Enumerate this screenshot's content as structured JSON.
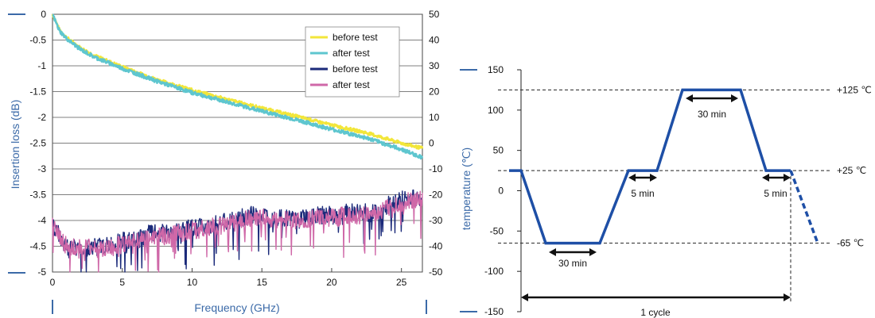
{
  "chart_data": [
    {
      "type": "line",
      "xlabel": "Frequency (GHz)",
      "ylabel": "Insertion loss (dB)",
      "xlim": [
        0,
        26.5
      ],
      "ylim": [
        -5,
        0
      ],
      "y2lim": [
        -50,
        50
      ],
      "x_ticks": [
        "0",
        "5",
        "10",
        "15",
        "20",
        "25"
      ],
      "y_ticks": [
        "0",
        "-0.5",
        "-1",
        "-1.5",
        "-2",
        "-2.5",
        "-3",
        "-3.5",
        "-4",
        "-4.5",
        "-5"
      ],
      "y2_ticks": [
        "50",
        "40",
        "30",
        "20",
        "10",
        "0",
        "-10",
        "-20",
        "-30",
        "-40",
        "-50"
      ],
      "grid": true,
      "legend_position": "top-right",
      "series": [
        {
          "name": "before test",
          "color": "#f2e63a",
          "axis": "left",
          "x": [
            0,
            0.5,
            1,
            2,
            3,
            5,
            7.5,
            10,
            12.5,
            15,
            17.5,
            20,
            22.5,
            25,
            26.5
          ],
          "values": [
            0,
            -0.3,
            -0.45,
            -0.65,
            -0.8,
            -1.02,
            -1.27,
            -1.47,
            -1.65,
            -1.82,
            -1.98,
            -2.15,
            -2.3,
            -2.5,
            -2.6
          ]
        },
        {
          "name": "after test",
          "color": "#5ec6cf",
          "axis": "left",
          "x": [
            0,
            0.5,
            1,
            2,
            3,
            5,
            7.5,
            10,
            12.5,
            15,
            17.5,
            20,
            22.5,
            25,
            26.5
          ],
          "values": [
            0,
            -0.32,
            -0.47,
            -0.68,
            -0.83,
            -1.05,
            -1.3,
            -1.52,
            -1.7,
            -1.88,
            -2.05,
            -2.23,
            -2.4,
            -2.62,
            -2.78
          ]
        },
        {
          "name": "before test",
          "color": "#1b2a7a",
          "axis": "right",
          "x": [
            0,
            0.5,
            1,
            2,
            3,
            4,
            5,
            6,
            7,
            8,
            9,
            10,
            11,
            12,
            13,
            14,
            15,
            16,
            17,
            18,
            19,
            20,
            21,
            22,
            23,
            24,
            25,
            26.5
          ],
          "values": [
            -32,
            -36,
            -40,
            -41,
            -40,
            -40,
            -38,
            -38,
            -35,
            -35,
            -34,
            -33,
            -32,
            -31,
            -30,
            -28,
            -28,
            -29,
            -29,
            -29,
            -28,
            -28,
            -27,
            -27,
            -27,
            -24,
            -22,
            -21
          ]
        },
        {
          "name": "after test",
          "color": "#cf68a8",
          "axis": "right",
          "x": [
            0,
            0.5,
            1,
            2,
            3,
            4,
            5,
            6,
            7,
            8,
            9,
            10,
            11,
            12,
            13,
            14,
            15,
            16,
            17,
            18,
            19,
            20,
            21,
            22,
            23,
            24,
            25,
            26.5
          ],
          "values": [
            -32,
            -36,
            -40,
            -41,
            -40,
            -41,
            -39,
            -38,
            -36,
            -36,
            -35,
            -34,
            -33,
            -32,
            -31,
            -29,
            -29,
            -30,
            -30,
            -30,
            -29,
            -29,
            -28,
            -28,
            -28,
            -25,
            -23,
            -22
          ]
        }
      ]
    },
    {
      "type": "line",
      "xlabel": "",
      "ylabel": "temperature (℃)",
      "ylim": [
        -150,
        150
      ],
      "y_ticks": [
        "150",
        "100",
        "50",
        "0",
        "-50",
        "-100",
        "-150"
      ],
      "grid": false,
      "series": [
        {
          "color": "#1e4fa6",
          "x": [
            0,
            3,
            5,
            9,
            12,
            13.5,
            15.5,
            19,
            21,
            23,
            25
          ],
          "values": [
            25,
            25,
            -65,
            -65,
            25,
            25,
            125,
            125,
            25,
            25,
            25
          ]
        },
        {
          "color": "#1e4fa6",
          "style": "dashed",
          "x": [
            23,
            25
          ],
          "values": [
            25,
            -65
          ]
        }
      ],
      "reference_lines": [
        {
          "label": "+125 ℃",
          "value": 125
        },
        {
          "label": "+25 ℃",
          "value": 25
        },
        {
          "label": "-65 ℃",
          "value": -65
        }
      ],
      "annotations": [
        "30 min",
        "5 min",
        "30 min",
        "5 min",
        "1 cycle"
      ]
    }
  ]
}
